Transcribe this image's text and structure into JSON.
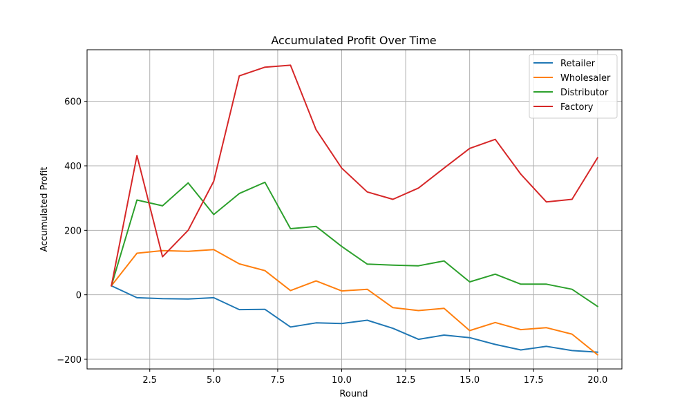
{
  "chart_data": {
    "type": "line",
    "title": "Accumulated Profit Over Time",
    "xlabel": "Round",
    "ylabel": "Accumulated Profit",
    "x": [
      1,
      2,
      3,
      4,
      5,
      6,
      7,
      8,
      9,
      10,
      11,
      12,
      13,
      14,
      15,
      16,
      17,
      18,
      19,
      20
    ],
    "xlim": [
      0.05,
      20.95
    ],
    "ylim": [
      -230,
      760
    ],
    "xticks": [
      2.5,
      5.0,
      7.5,
      10.0,
      12.5,
      15.0,
      17.5,
      20.0
    ],
    "xtick_labels": [
      "2.5",
      "5.0",
      "7.5",
      "10.0",
      "12.5",
      "15.0",
      "17.5",
      "20.0"
    ],
    "yticks": [
      -200,
      0,
      200,
      400,
      600
    ],
    "ytick_labels": [
      "−200",
      "0",
      "200",
      "400",
      "600"
    ],
    "grid": true,
    "legend_position": "top-right",
    "series": [
      {
        "name": "Retailer",
        "color": "#1f77b4",
        "values": [
          28,
          -9,
          -12,
          -13,
          -9,
          -46,
          -45,
          -100,
          -87,
          -89,
          -79,
          -104,
          -138,
          -125,
          -133,
          -154,
          -171,
          -160,
          -173,
          -178
        ]
      },
      {
        "name": "Wholesaler",
        "color": "#ff7f0e",
        "values": [
          28,
          129,
          137,
          135,
          140,
          96,
          75,
          13,
          43,
          12,
          17,
          -40,
          -49,
          -42,
          -111,
          -86,
          -108,
          -102,
          -122,
          -186
        ]
      },
      {
        "name": "Distributor",
        "color": "#2ca02c",
        "values": [
          28,
          294,
          276,
          347,
          249,
          314,
          349,
          205,
          212,
          150,
          95,
          92,
          90,
          105,
          40,
          64,
          33,
          33,
          17,
          -36
        ]
      },
      {
        "name": "Factory",
        "color": "#d62728",
        "values": [
          28,
          432,
          118,
          200,
          352,
          679,
          706,
          712,
          512,
          393,
          319,
          296,
          331,
          393,
          454,
          482,
          374,
          288,
          296,
          425
        ]
      }
    ]
  }
}
